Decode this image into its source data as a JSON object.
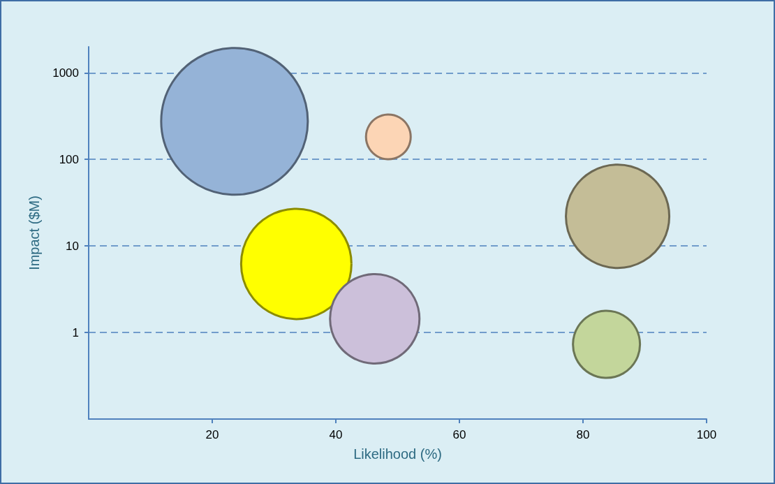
{
  "chart_data": {
    "type": "bubble",
    "xlabel": "Likelihood (%)",
    "ylabel": "Impact ($M)",
    "x": [
      23.6,
      48.5,
      85.6,
      33.6,
      46.3,
      83.8
    ],
    "values": [
      275,
      182,
      22,
      6.2,
      1.44,
      0.73
    ],
    "sizes": [
      1,
      0.093,
      0.497,
      0.566,
      0.372,
      0.209
    ],
    "colors": [
      "#95b3d7",
      "#fcd5b5",
      "#c4bd97",
      "#ffff00",
      "#ccc0da",
      "#c3d69b"
    ],
    "xlim": [
      0,
      100
    ],
    "xticks": [
      20,
      40,
      60,
      80,
      100
    ],
    "ylim": [
      0.1,
      2000
    ],
    "yticks": [
      1,
      10,
      100,
      1000
    ],
    "log": "y",
    "grid": "y"
  }
}
